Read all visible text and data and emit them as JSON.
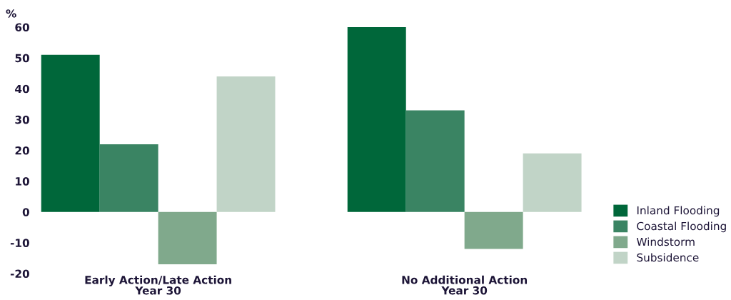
{
  "chart_data": {
    "type": "bar",
    "ylabel": "%",
    "categories": [
      "Early Action/Late Action\nYear 30",
      "No Additional Action\nYear 30"
    ],
    "series": [
      {
        "name": "Inland Flooding",
        "color": "#00673a",
        "values": [
          51,
          60
        ]
      },
      {
        "name": "Coastal Flooding",
        "color": "#3a8463",
        "values": [
          22,
          33
        ]
      },
      {
        "name": "Windstorm",
        "color": "#80a98c",
        "values": [
          -17,
          -12
        ]
      },
      {
        "name": "Subsidence",
        "color": "#c1d4c7",
        "values": [
          44,
          19
        ]
      }
    ],
    "ylim": [
      -20,
      60
    ],
    "yticks": [
      -20,
      -10,
      0,
      10,
      20,
      30,
      40,
      50,
      60
    ],
    "grid": false,
    "legend": "bottom right"
  }
}
